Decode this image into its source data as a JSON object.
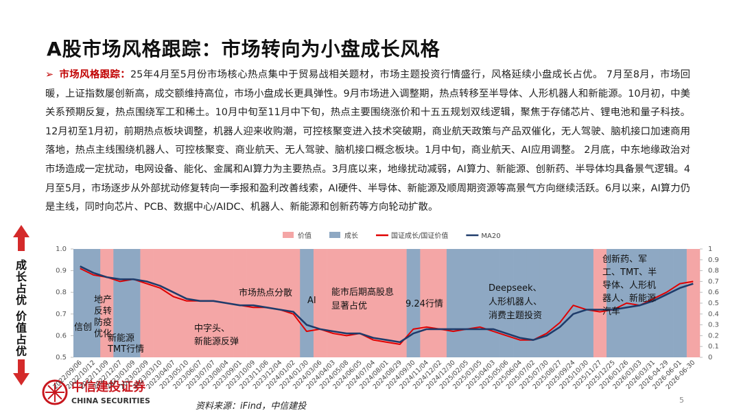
{
  "header": {
    "title": "A股市场风格跟踪：市场转向为小盘成长风格"
  },
  "text": {
    "lead": "市场风格跟踪：",
    "body": "25年4月至5月份市场核心热点集中于贸易战相关题材，市场主题投资行情盛行，风格延续小盘成长占优。 7月至8月，市场回暖，上证指数屡创新高，成交额维持高位，市场小盘成长更具弹性。9月市场进入调整期，热点转移至半导体、人形机器人和新能源。10月初，中美关系预期反复，热点围绕军工和稀土。10月中旬至11月中下旬，热点主要围绕涨价和十五五规划双线逻辑，聚焦于存储芯片、锂电池和量子科技。12月初至1月初，前期热点板块调整，机器人迎来收购潮，可控核聚变进入技术突破期，商业航天政策与产品双催化，无人驾驶、脑机接口加速商用落地，热点主线围绕机器人、可控核聚变、商业航天、无人驾驶、脑机接口概念板块。1月中旬，商业航天、AI应用调整。 2月底，中东地缘政治对市场造成一定扰动，电网设备、能化、金属和AI算力为主要热点。3月底以来，地缘扰动减弱，AI算力、新能源、创新药、半导体均具备景气逻辑。4月至5月，市场逐步从外部扰动修复转向一季报和盈利改善线索，AI硬件、半导体、新能源及顺周期资源等高景气方向继续活跃。6月以来，AI算力仍是主线，同时向芯片、PCB、数据中心/AIDC、机器人、新能源和创新药等方向轮动扩散。"
  },
  "side_label": "成长占优 价值占优",
  "chart_data": {
    "type": "line",
    "categories": [
      "2022/09/06",
      "2022/10/12",
      "2022/11/09",
      "2022/12/07",
      "2023/01/09",
      "2023/02/09",
      "2023/03/10",
      "2023/04/07",
      "2023/05/10",
      "2023/06/07",
      "2023/07/07",
      "2023/08/04",
      "2023/09/01",
      "2023/10/09",
      "2023/11/06",
      "2023/12/04",
      "2024/01/02",
      "2024/01/30",
      "2024/03/06",
      "2024/04/03",
      "2024/05/08",
      "2024/06/05",
      "2024/07/04",
      "2024/08/01",
      "2024/08/29",
      "2024/09/30",
      "2024/11/04",
      "2024/12/02",
      "2024/12/30",
      "2025/02/05",
      "2025/03/05",
      "2025/04/03",
      "2025/05/06",
      "2025/06/04",
      "2025/07/02",
      "2025/07/30",
      "2025/08/27",
      "2025/09/24",
      "2025/10/30",
      "2025/11/27",
      "2025/12/25",
      "2026/01/26",
      "2026/03/03",
      "2026/03/31",
      "2026-04-29",
      "2026-06-01",
      "2026-06-30"
    ],
    "series": [
      {
        "name": "价值",
        "color": "#f4a6a6",
        "kind": "bar",
        "axis": "y2",
        "values": [
          0,
          0,
          1,
          0,
          0,
          1,
          1,
          1,
          1,
          1,
          1,
          1,
          1,
          1,
          1,
          1,
          1,
          0,
          1,
          1,
          1,
          1,
          1,
          1,
          1,
          0,
          1,
          1,
          0,
          0,
          0,
          0,
          0,
          0,
          0,
          0,
          0,
          0,
          0,
          1,
          0,
          0,
          0,
          0,
          0,
          0,
          1
        ]
      },
      {
        "name": "成长",
        "color": "#8ea8c3",
        "kind": "bar",
        "axis": "y2",
        "values": [
          1,
          1,
          0,
          1,
          1,
          0,
          0,
          0,
          0,
          0,
          0,
          0,
          0,
          0,
          0,
          0,
          0,
          1,
          0,
          0,
          0,
          0,
          0,
          0,
          0,
          1,
          0,
          0,
          1,
          1,
          1,
          1,
          1,
          1,
          1,
          1,
          1,
          1,
          1,
          0,
          1,
          1,
          1,
          1,
          1,
          1,
          0
        ]
      },
      {
        "name": "国证成长/国证价值",
        "color": "#e00000",
        "kind": "line",
        "values": [
          0.91,
          0.88,
          0.87,
          0.85,
          0.86,
          0.84,
          0.82,
          0.78,
          0.76,
          0.76,
          0.76,
          0.75,
          0.74,
          0.73,
          0.73,
          0.72,
          0.7,
          0.62,
          0.63,
          0.61,
          0.6,
          0.61,
          0.58,
          0.57,
          0.56,
          0.63,
          0.64,
          0.63,
          0.62,
          0.63,
          0.64,
          0.62,
          0.6,
          0.58,
          0.58,
          0.61,
          0.66,
          0.74,
          0.72,
          0.71,
          0.72,
          0.75,
          0.74,
          0.77,
          0.8,
          0.84,
          0.85
        ]
      },
      {
        "name": "MA20",
        "color": "#1f3c6b",
        "kind": "line",
        "values": [
          0.92,
          0.89,
          0.87,
          0.86,
          0.86,
          0.85,
          0.83,
          0.8,
          0.77,
          0.76,
          0.76,
          0.75,
          0.74,
          0.74,
          0.73,
          0.72,
          0.71,
          0.65,
          0.63,
          0.62,
          0.61,
          0.61,
          0.59,
          0.58,
          0.57,
          0.61,
          0.63,
          0.63,
          0.63,
          0.63,
          0.63,
          0.63,
          0.61,
          0.59,
          0.58,
          0.6,
          0.64,
          0.7,
          0.72,
          0.72,
          0.72,
          0.73,
          0.74,
          0.76,
          0.79,
          0.82,
          0.84
        ]
      }
    ],
    "ylim": [
      0.5,
      1.0
    ],
    "yticks": [
      0.5,
      0.6,
      0.7,
      0.8,
      0.9,
      {
        "value": 1.0,
        "label": "1.0"
      }
    ],
    "y2lim": [
      0,
      1
    ],
    "y2ticks": [
      0,
      0.1,
      0.2,
      0.3,
      0.4,
      0.5,
      0.6,
      0.7,
      0.8,
      0.9,
      1
    ],
    "legend": "top",
    "annotations": [
      {
        "lines": [
          "信创"
        ]
      },
      {
        "lines": [
          "地产",
          "反转",
          "防疫",
          "优化"
        ]
      },
      {
        "lines": [
          "新能源",
          "TMT行情"
        ]
      },
      {
        "lines": [
          "中字头、",
          "新能源反弹"
        ]
      },
      {
        "lines": [
          "市场热点分散"
        ]
      },
      {
        "lines": [
          "AI"
        ]
      },
      {
        "lines": [
          "能市后期高股息",
          "显著占优"
        ]
      },
      {
        "lines": [
          "9.24行情"
        ]
      },
      {
        "lines": [
          "Deepseek、",
          "人形机器人、",
          "消费主题投资"
        ]
      },
      {
        "lines": [
          "创新药、军",
          "工、TMT、半",
          "导体、人形机",
          "器人、新能源",
          "汽车"
        ]
      }
    ]
  },
  "footer": {
    "logo_cn": "中信建投证券",
    "logo_en": "CHINA SECURITIES",
    "source": "资料来源：iFind，中信建投",
    "page": 5
  }
}
